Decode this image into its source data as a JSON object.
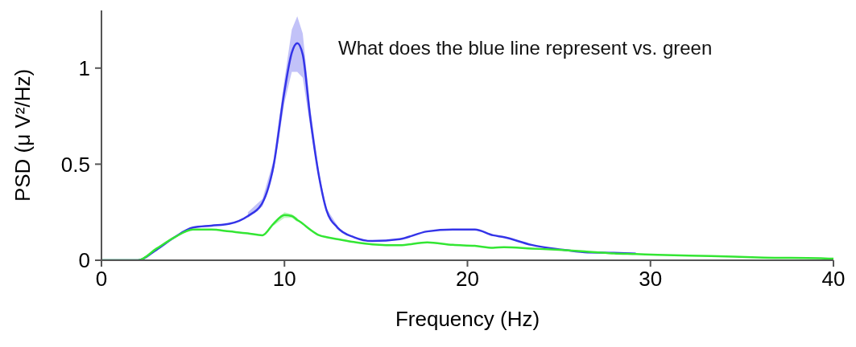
{
  "chart_data": {
    "type": "line",
    "xlabel": "Frequency (Hz)",
    "ylabel": "PSD (μ V²/Hz)",
    "annotations": [
      "What does the blue line represent vs. green"
    ],
    "x": [
      0,
      2,
      3,
      4,
      5,
      6,
      7,
      8,
      8.8,
      9.4,
      10,
      10.4,
      10.7,
      11,
      11.4,
      11.9,
      12.3,
      12.9,
      13.8,
      14.8,
      16.3,
      17.8,
      19.2,
      20.4,
      21.4,
      22,
      23.5,
      25,
      26.4,
      27.9,
      29.2,
      30.4,
      33.3,
      36.2,
      39.3,
      40
    ],
    "series": [
      {
        "color": "#3434e8",
        "values": [
          0,
          0,
          0.054,
          0.12,
          0.17,
          0.18,
          0.19,
          0.23,
          0.3,
          0.49,
          0.88,
          1.08,
          1.13,
          1.07,
          0.75,
          0.43,
          0.26,
          0.17,
          0.12,
          0.1,
          0.11,
          0.15,
          0.16,
          0.16,
          0.13,
          0.12,
          0.08,
          0.057,
          0.042,
          0.039,
          0.035,
          null,
          null,
          null,
          null,
          null
        ],
        "lower": [
          null,
          null,
          null,
          null,
          null,
          null,
          null,
          0.22,
          0.28,
          0.46,
          0.82,
          0.98,
          0.98,
          0.95,
          0.7,
          0.41,
          0.25,
          0.16,
          null,
          null,
          null,
          null,
          null,
          null,
          null,
          null,
          null,
          null,
          null,
          null,
          null,
          null,
          null,
          null,
          null,
          null
        ],
        "upper": [
          null,
          null,
          null,
          null,
          null,
          null,
          null,
          0.25,
          0.32,
          0.52,
          0.94,
          1.2,
          1.27,
          1.18,
          0.8,
          0.45,
          0.27,
          0.18,
          null,
          null,
          null,
          null,
          null,
          null,
          null,
          null,
          null,
          null,
          null,
          null,
          null,
          null,
          null,
          null,
          null,
          null
        ]
      },
      {
        "color": "#33e633",
        "values": [
          0,
          0,
          0.06,
          0.12,
          0.16,
          0.16,
          0.15,
          0.14,
          0.13,
          0.19,
          0.235,
          0.23,
          0.21,
          0.19,
          0.16,
          0.13,
          0.12,
          0.11,
          0.095,
          0.083,
          0.078,
          0.093,
          0.08,
          0.075,
          0.065,
          0.068,
          0.061,
          0.054,
          0.046,
          0.036,
          0.032,
          0.028,
          0.022,
          0.014,
          0.01,
          0.008
        ],
        "lower": [
          null,
          null,
          null,
          null,
          null,
          null,
          null,
          null,
          null,
          0.18,
          0.22,
          0.22,
          0.2,
          null,
          null,
          null,
          null,
          null,
          null,
          null,
          null,
          null,
          null,
          null,
          null,
          null,
          null,
          null,
          null,
          null,
          null,
          null,
          null,
          null,
          null,
          null
        ],
        "upper": [
          null,
          null,
          null,
          null,
          null,
          null,
          null,
          null,
          null,
          0.2,
          0.25,
          0.24,
          0.22,
          null,
          null,
          null,
          null,
          null,
          null,
          null,
          null,
          null,
          null,
          null,
          null,
          null,
          null,
          null,
          null,
          null,
          null,
          null,
          null,
          null,
          null,
          null
        ]
      }
    ],
    "xlim": [
      0,
      40
    ],
    "xticks": [
      0,
      10,
      20,
      30,
      40
    ],
    "ylim": [
      0,
      1.3
    ],
    "yticks": [
      0,
      0.5,
      1
    ],
    "grid": false,
    "legend": false,
    "marker": "none",
    "line_style": "solid"
  }
}
